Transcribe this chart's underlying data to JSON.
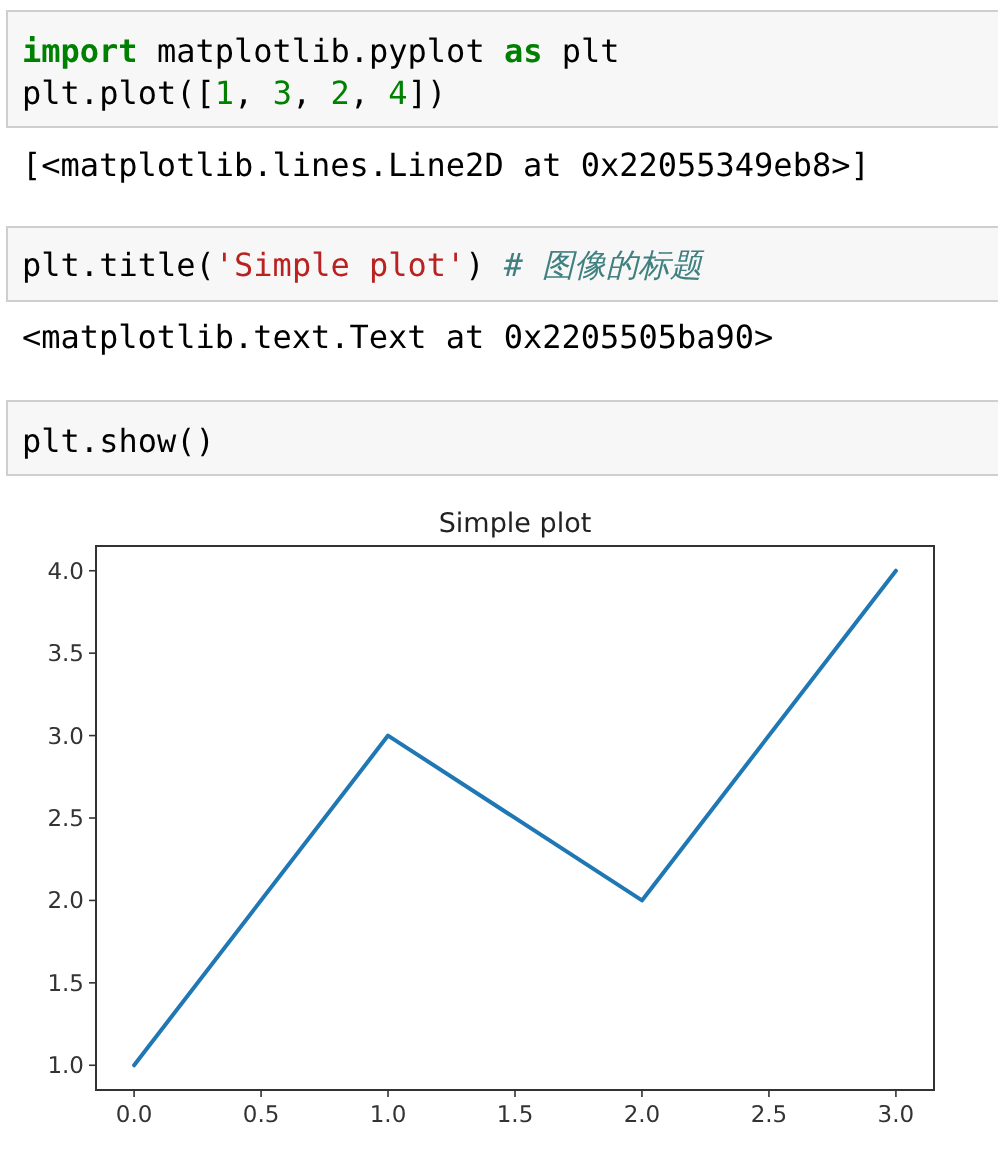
{
  "chart_data": {
    "type": "line",
    "title": "Simple plot",
    "x": [
      0,
      1,
      2,
      3
    ],
    "series": [
      {
        "color": "#1f77b4",
        "values": [
          1,
          3,
          2,
          4
        ]
      }
    ],
    "xlim": [
      -0.15,
      3.15
    ],
    "ylim": [
      0.85,
      4.15
    ],
    "xticks": [
      {
        "value": 0,
        "label": "0.0"
      },
      {
        "value": 0.5,
        "label": "0.5"
      },
      {
        "value": 1,
        "label": "1.0"
      },
      {
        "value": 1.5,
        "label": "1.5"
      },
      {
        "value": 2,
        "label": "2.0"
      },
      {
        "value": 2.5,
        "label": "2.5"
      },
      {
        "value": 3,
        "label": "3.0"
      }
    ],
    "yticks": [
      {
        "value": 1,
        "label": "1.0"
      },
      {
        "value": 1.5,
        "label": "1.5"
      },
      {
        "value": 2,
        "label": "2.0"
      },
      {
        "value": 2.5,
        "label": "2.5"
      },
      {
        "value": 3,
        "label": "3.0"
      },
      {
        "value": 3.5,
        "label": "3.5"
      },
      {
        "value": 4,
        "label": "4.0"
      }
    ],
    "grid": false,
    "annotations": [
      "import matplotlib.pyplot as plt",
      "plt.plot([1, 3, 2, 4])",
      "[<matplotlib.lines.Line2D at 0x22055349eb8>]",
      "plt.title('Simple plot')  # 图像的标题",
      "<matplotlib.text.Text at 0x2205505ba90>",
      "plt.show()"
    ]
  }
}
